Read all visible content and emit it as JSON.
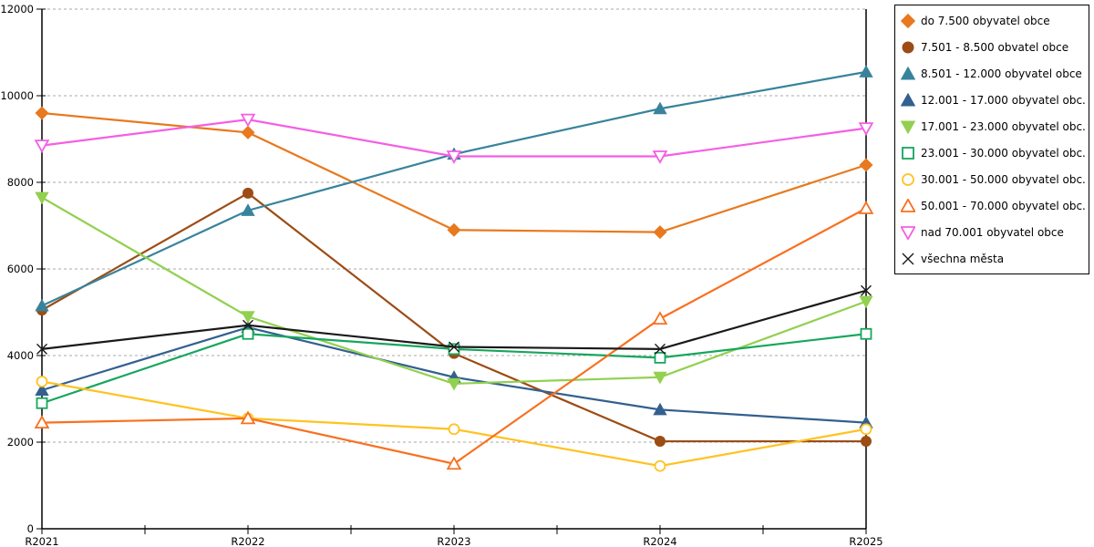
{
  "chart_data": {
    "type": "line",
    "title": "",
    "xlabel": "",
    "ylabel": "",
    "categories": [
      "R2021",
      "R2022",
      "R2023",
      "R2024",
      "R2025"
    ],
    "ylim": [
      0,
      12000
    ],
    "ytick_step": 2000,
    "y_tick_labels": [
      "0",
      "2000",
      "4000",
      "6000",
      "8000",
      "10000",
      "12000"
    ],
    "grid": "horizontal-dashed",
    "grid_color": "#aaaaaa",
    "axis_color": "#000000",
    "legend_position": "right-outside",
    "series": [
      {
        "name": "do 7.500 obyvatel obce",
        "marker": "diamond",
        "style": "filled",
        "color": "#e8791e",
        "values": [
          9600,
          9150,
          6900,
          6850,
          8400
        ]
      },
      {
        "name": "7.501 - 8.500 obvatel obce",
        "marker": "circle",
        "style": "filled",
        "color": "#9c4c14",
        "values": [
          5050,
          7750,
          4050,
          2020,
          2020
        ]
      },
      {
        "name": "8.501 - 12.000 obyvatel obce",
        "marker": "triangle-up",
        "style": "filled",
        "color": "#38839c",
        "values": [
          5150,
          7350,
          8650,
          9700,
          10550
        ]
      },
      {
        "name": "12.001 - 17.000 obyvatel obc...",
        "marker": "triangle-up",
        "style": "filled",
        "color": "#33608f",
        "values": [
          3200,
          4650,
          3500,
          2750,
          2450
        ]
      },
      {
        "name": "17.001 - 23.000 obyvatel obc...",
        "marker": "triangle-down",
        "style": "filled",
        "color": "#92d050",
        "values": [
          7650,
          4900,
          3350,
          3500,
          5250
        ]
      },
      {
        "name": "23.001 - 30.000 obyvatel obc...",
        "marker": "square",
        "style": "open",
        "color": "#17a65e",
        "values": [
          2900,
          4500,
          4150,
          3950,
          4500
        ]
      },
      {
        "name": "30.001 - 50.000 obyvatel obc...",
        "marker": "circle",
        "style": "open",
        "color": "#ffc220",
        "values": [
          3400,
          2550,
          2300,
          1450,
          2300
        ]
      },
      {
        "name": "50.001 - 70.000 obyvatel obc...",
        "marker": "triangle-up",
        "style": "open",
        "color": "#f9701f",
        "values": [
          2450,
          2550,
          1500,
          4850,
          7400
        ]
      },
      {
        "name": "nad 70.001 obyvatel obce",
        "marker": "triangle-down",
        "style": "open",
        "color": "#f45fe3",
        "values": [
          8850,
          9450,
          8600,
          8600,
          9250
        ]
      },
      {
        "name": "všechna města",
        "marker": "x",
        "style": "line",
        "color": "#1a1a1a",
        "values": [
          4150,
          4700,
          4200,
          4150,
          5500
        ]
      }
    ]
  }
}
